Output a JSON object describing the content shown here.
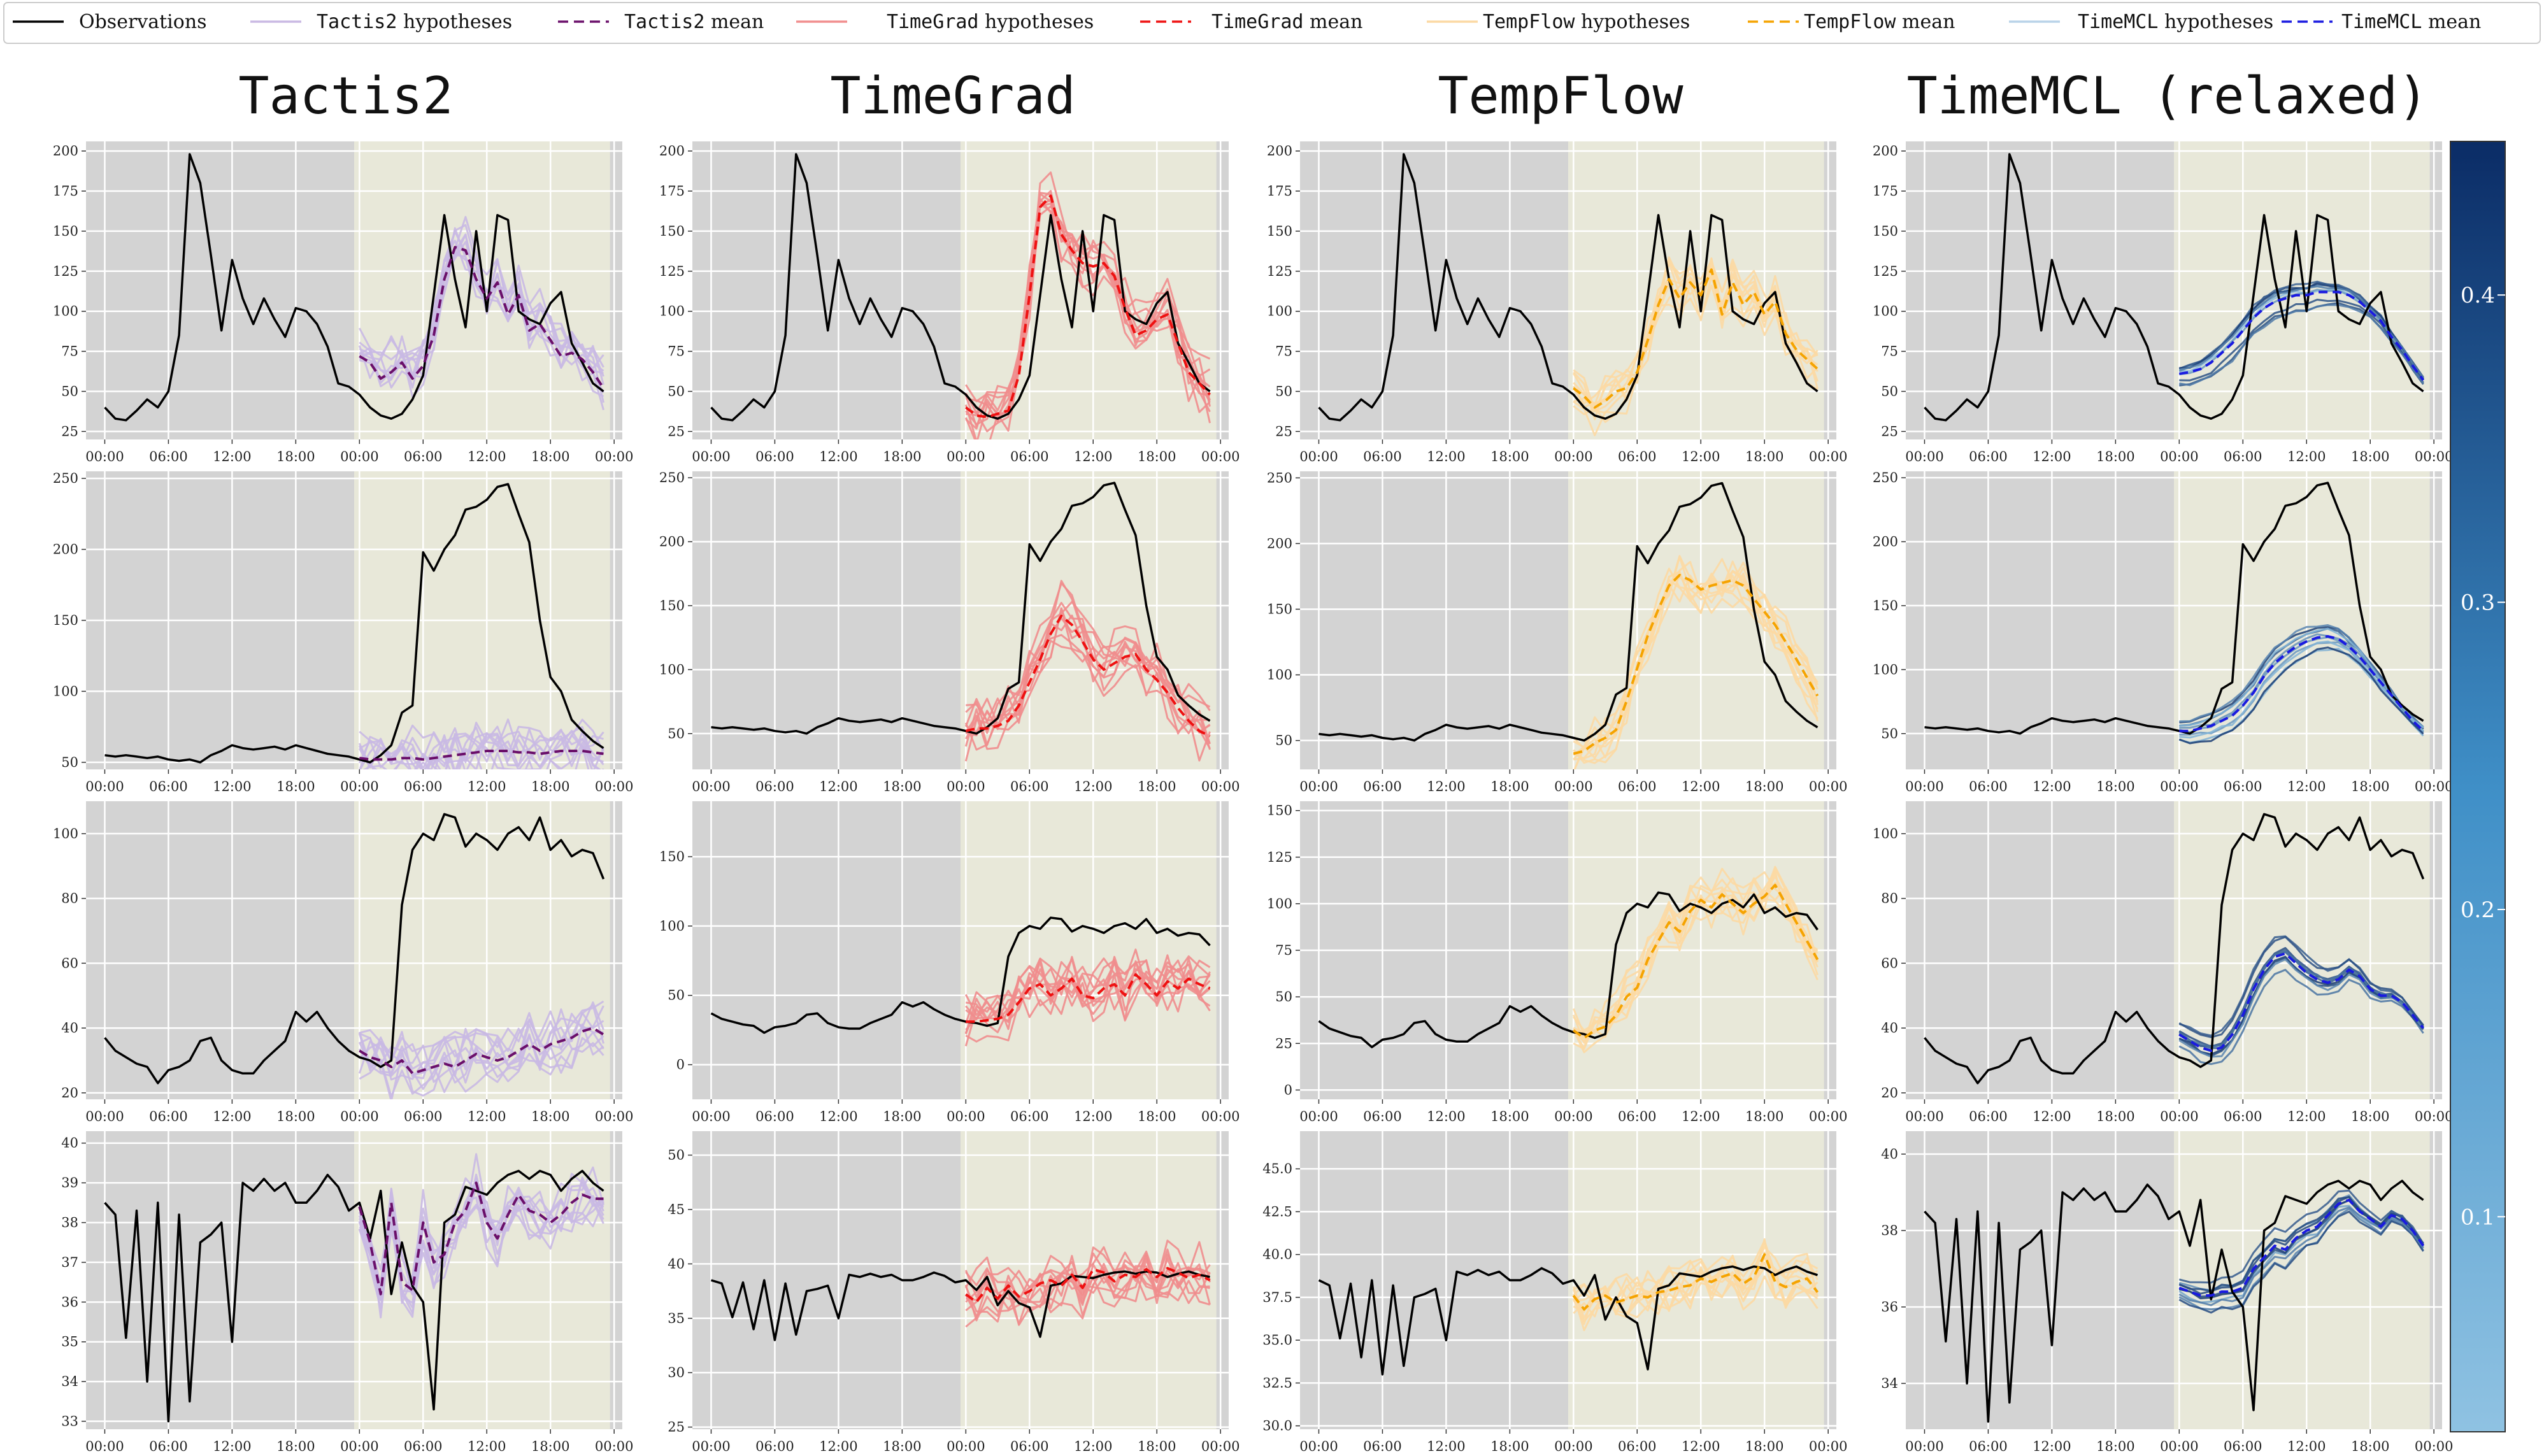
{
  "legend": {
    "observations": "Observations",
    "items": [
      {
        "method": "Tactis2",
        "hyp": " hypotheses",
        "mean": " mean",
        "color": "#c9b9e3",
        "mean_color": "#6a0f6a"
      },
      {
        "method": "TimeGrad",
        "hyp": " hypotheses",
        "mean": " mean",
        "color": "#f08d8d",
        "mean_color": "#ee1111"
      },
      {
        "method": "TempFlow",
        "hyp": " hypotheses",
        "mean": " mean",
        "color": "#fcd9a3",
        "mean_color": "#f5a300"
      },
      {
        "method": "TimeMCL",
        "hyp": " hypotheses",
        "mean": " mean",
        "color": "#b9d3e8",
        "mean_color": "#1a1ae0"
      }
    ]
  },
  "column_titles": [
    "Tactis2",
    "TimeGrad",
    "TempFlow",
    "TimeMCL (relaxed)"
  ],
  "colors": {
    "observations": "#000000",
    "context_bg": "#d3d3d3",
    "forecast_bg": "#e8e8d9",
    "grid": "#ffffff"
  },
  "colorbar": {
    "ticks": [
      "0.1",
      "0.2",
      "0.3",
      "0.4"
    ],
    "range": [
      0.03,
      0.45
    ],
    "colors": [
      "#8fc2e2",
      "#0b2c66"
    ]
  },
  "chart_data": {
    "type": "line",
    "x_tick_labels": [
      "00:00",
      "06:00",
      "12:00",
      "18:00",
      "00:00",
      "06:00",
      "12:00",
      "18:00",
      "00:00"
    ],
    "context_steps": 24,
    "prediction_steps": 24,
    "rows": [
      {
        "observations": [
          40,
          33,
          32,
          38,
          45,
          40,
          50,
          85,
          198,
          180,
          135,
          88,
          132,
          108,
          92,
          108,
          95,
          84,
          102,
          100,
          92,
          78,
          55,
          53,
          48,
          40,
          35,
          33,
          36,
          45,
          60,
          110,
          160,
          120,
          90,
          150,
          100,
          160,
          157,
          100,
          95,
          92,
          105,
          112,
          80,
          68,
          55,
          50
        ],
        "panels": [
          {
            "yticks": [
              "25",
              "50",
              "75",
              "100",
              "125",
              "150",
              "175",
              "200"
            ],
            "ylim": [
              20,
              206
            ]
          },
          {
            "yticks": [
              "25",
              "50",
              "75",
              "100",
              "125",
              "150",
              "175",
              "200"
            ],
            "ylim": [
              20,
              206
            ]
          },
          {
            "yticks": [
              "25",
              "50",
              "75",
              "100",
              "125",
              "150",
              "175",
              "200"
            ],
            "ylim": [
              20,
              206
            ]
          },
          {
            "yticks": [
              "25",
              "50",
              "75",
              "100",
              "125",
              "150",
              "175",
              "200"
            ],
            "ylim": [
              20,
              206
            ]
          }
        ],
        "means": [
          [
            72,
            68,
            58,
            62,
            68,
            58,
            66,
            85,
            120,
            140,
            138,
            120,
            108,
            118,
            98,
            110,
            88,
            92,
            82,
            72,
            74,
            70,
            62,
            52
          ],
          [
            40,
            35,
            34,
            36,
            38,
            60,
            110,
            165,
            172,
            148,
            138,
            130,
            128,
            130,
            122,
            102,
            85,
            88,
            95,
            98,
            80,
            62,
            55,
            48
          ],
          [
            52,
            47,
            40,
            44,
            50,
            52,
            62,
            82,
            104,
            120,
            108,
            118,
            110,
            126,
            98,
            118,
            104,
            112,
            98,
            106,
            86,
            76,
            70,
            64
          ],
          [
            61,
            62,
            64,
            68,
            74,
            80,
            88,
            96,
            102,
            106,
            108,
            110,
            110,
            112,
            112,
            112,
            110,
            106,
            100,
            94,
            84,
            76,
            66,
            57
          ]
        ]
      },
      {
        "observations": [
          55,
          54,
          55,
          54,
          53,
          54,
          52,
          51,
          52,
          50,
          55,
          58,
          62,
          60,
          59,
          60,
          61,
          59,
          62,
          60,
          58,
          56,
          55,
          54,
          52,
          50,
          55,
          62,
          85,
          90,
          198,
          185,
          200,
          210,
          228,
          230,
          235,
          244,
          246,
          225,
          205,
          150,
          110,
          100,
          80,
          72,
          65,
          60
        ],
        "panels": [
          {
            "yticks": [
              "50",
              "100",
              "150",
              "200",
              "250"
            ],
            "ylim": [
              45,
              255
            ]
          },
          {
            "yticks": [
              "50",
              "100",
              "150",
              "200",
              "250"
            ],
            "ylim": [
              22,
              255
            ]
          },
          {
            "yticks": [
              "50",
              "100",
              "150",
              "200",
              "250"
            ],
            "ylim": [
              28,
              255
            ]
          },
          {
            "yticks": [
              "50",
              "100",
              "150",
              "200",
              "250"
            ],
            "ylim": [
              22,
              255
            ]
          }
        ],
        "means": [
          [
            53,
            52,
            52,
            52,
            53,
            53,
            52,
            53,
            54,
            55,
            56,
            57,
            58,
            58,
            58,
            57,
            57,
            56,
            57,
            58,
            58,
            58,
            57,
            56
          ],
          [
            52,
            54,
            54,
            56,
            60,
            72,
            90,
            108,
            128,
            142,
            135,
            122,
            108,
            100,
            105,
            110,
            112,
            100,
            92,
            82,
            70,
            60,
            52,
            48
          ],
          [
            40,
            42,
            48,
            52,
            58,
            80,
            105,
            130,
            150,
            168,
            176,
            172,
            165,
            168,
            170,
            172,
            168,
            158,
            148,
            138,
            125,
            112,
            98,
            84
          ],
          [
            52,
            52,
            54,
            56,
            60,
            64,
            72,
            82,
            95,
            105,
            112,
            118,
            122,
            125,
            126,
            124,
            118,
            110,
            100,
            90,
            80,
            70,
            60,
            52
          ]
        ]
      },
      {
        "observations": [
          37,
          33,
          31,
          29,
          28,
          23,
          27,
          28,
          30,
          36,
          37,
          30,
          27,
          26,
          26,
          30,
          33,
          36,
          45,
          42,
          45,
          40,
          36,
          33,
          31,
          30,
          28,
          30,
          78,
          95,
          100,
          98,
          106,
          105,
          96,
          100,
          98,
          95,
          100,
          102,
          98,
          105,
          95,
          98,
          93,
          95,
          94,
          86
        ],
        "panels": [
          {
            "yticks": [
              "20",
              "40",
              "60",
              "80",
              "100"
            ],
            "ylim": [
              18,
              110
            ]
          },
          {
            "yticks": [
              "0",
              "50",
              "100",
              "150"
            ],
            "ylim": [
              -25,
              190
            ]
          },
          {
            "yticks": [
              "0",
              "25",
              "50",
              "75",
              "100",
              "125",
              "150"
            ],
            "ylim": [
              -5,
              155
            ]
          },
          {
            "yticks": [
              "20",
              "40",
              "60",
              "80",
              "100"
            ],
            "ylim": [
              18,
              110
            ]
          }
        ],
        "means": [
          [
            33,
            31,
            30,
            28,
            30,
            26,
            27,
            28,
            29,
            28,
            30,
            32,
            31,
            30,
            31,
            33,
            35,
            33,
            35,
            36,
            37,
            39,
            40,
            38
          ],
          [
            31,
            31,
            32,
            33,
            36,
            45,
            55,
            58,
            50,
            55,
            62,
            50,
            48,
            55,
            58,
            50,
            65,
            58,
            50,
            60,
            55,
            62,
            58,
            55
          ],
          [
            32,
            28,
            32,
            34,
            40,
            50,
            55,
            70,
            80,
            90,
            85,
            96,
            102,
            98,
            105,
            100,
            95,
            100,
            104,
            110,
            100,
            90,
            80,
            70
          ],
          [
            38,
            36,
            34,
            33,
            34,
            38,
            44,
            52,
            58,
            62,
            63,
            60,
            57,
            55,
            54,
            55,
            58,
            56,
            52,
            50,
            50,
            48,
            44,
            40
          ]
        ]
      },
      {
        "observations": [
          38.5,
          38.2,
          35.1,
          38.3,
          34,
          38.5,
          33,
          38.2,
          33.5,
          37.5,
          37.7,
          38,
          35,
          39,
          38.8,
          39.1,
          38.8,
          39,
          38.5,
          38.5,
          38.8,
          39.2,
          38.9,
          38.3,
          38.5,
          37.6,
          38.8,
          36.2,
          37.5,
          36.4,
          36,
          33.3,
          38,
          38.2,
          38.9,
          38.8,
          38.7,
          39,
          39.2,
          39.3,
          39.1,
          39.3,
          39.2,
          38.8,
          39.1,
          39.3,
          39,
          38.8
        ],
        "panels": [
          {
            "yticks": [
              "33",
              "34",
              "35",
              "36",
              "37",
              "38",
              "39",
              "40"
            ],
            "ylim": [
              32.8,
              40.3
            ]
          },
          {
            "yticks": [
              "25",
              "30",
              "35",
              "40",
              "45",
              "50"
            ],
            "ylim": [
              24.8,
              52.2
            ]
          },
          {
            "yticks": [
              "30.0",
              "32.5",
              "35.0",
              "37.5",
              "40.0",
              "42.5",
              "45.0"
            ],
            "ylim": [
              29.8,
              47.2
            ]
          },
          {
            "yticks": [
              "34",
              "36",
              "38",
              "40"
            ],
            "ylim": [
              32.8,
              40.6
            ]
          }
        ],
        "means": [
          [
            38.4,
            37.5,
            36.2,
            38.5,
            36.5,
            36.3,
            38,
            37,
            37.2,
            38,
            38.3,
            39,
            38,
            37.6,
            38.2,
            38.7,
            38.3,
            38.2,
            38,
            38.2,
            38.5,
            38.7,
            38.6,
            38.6
          ],
          [
            37.2,
            36.5,
            37.8,
            36.8,
            38,
            37,
            37.5,
            38.2,
            38.5,
            38,
            39,
            37.8,
            39.5,
            39.2,
            38.4,
            39,
            38.8,
            39.5,
            38.8,
            39.6,
            39.2,
            38.7,
            39,
            38.5
          ],
          [
            37.6,
            36.8,
            37.4,
            37.6,
            37.2,
            37.4,
            37.6,
            37.5,
            37.8,
            37.9,
            38.1,
            38.2,
            38.6,
            38.4,
            38.7,
            38.9,
            38.3,
            38.7,
            40,
            38.4,
            38.1,
            38.4,
            38.6,
            37.8
          ],
          [
            36.5,
            36.4,
            36.3,
            36.3,
            36.4,
            36.4,
            36.5,
            37,
            37.3,
            37.6,
            37.5,
            37.8,
            38,
            38.1,
            38.4,
            38.7,
            38.8,
            38.5,
            38.3,
            38.1,
            38.4,
            38.3,
            38.0,
            37.6
          ]
        ]
      }
    ]
  }
}
